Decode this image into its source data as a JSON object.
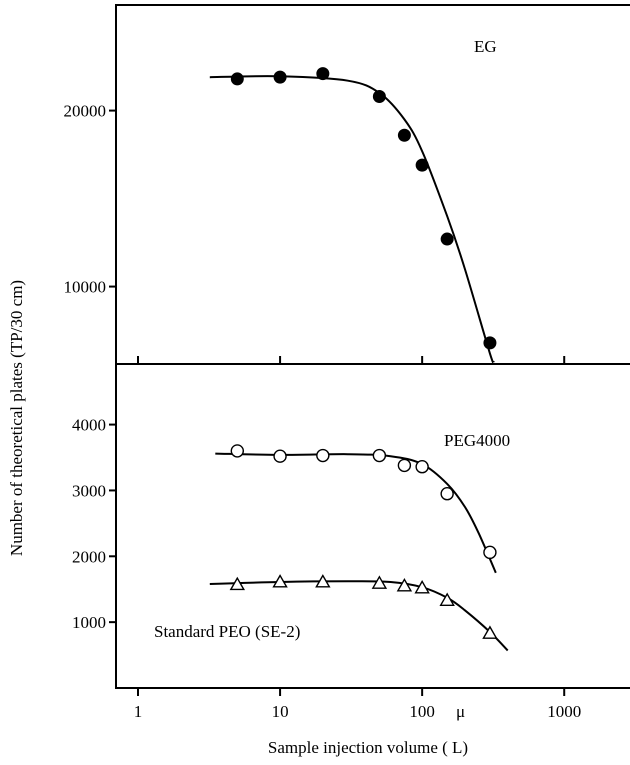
{
  "chart_data": [
    {
      "type": "scatter",
      "panel": "top",
      "annotation": "EG",
      "xscale": "log",
      "xlim": [
        0.7,
        3000
      ],
      "ylim": [
        5600,
        26000
      ],
      "yticks": [
        10000,
        20000
      ],
      "ytick_labels": [
        "10000",
        "20000"
      ],
      "series": [
        {
          "name": "EG",
          "marker": "filled-circle",
          "x": [
            5,
            10,
            20,
            50,
            75,
            100,
            150,
            300
          ],
          "y": [
            21800,
            21900,
            22100,
            20800,
            18600,
            16900,
            12700,
            6800
          ]
        }
      ],
      "fit_curve": {
        "x": [
          3.2,
          10,
          30,
          50,
          75,
          100,
          150,
          200,
          300,
          320
        ],
        "y": [
          21900,
          21950,
          21700,
          21000,
          19500,
          17700,
          14000,
          11000,
          6200,
          5700
        ]
      }
    },
    {
      "type": "scatter",
      "panel": "bottom",
      "xscale": "log",
      "xlim": [
        0.7,
        3000
      ],
      "ylim": [
        0,
        4920
      ],
      "yticks": [
        1000,
        2000,
        3000,
        4000
      ],
      "ytick_labels": [
        "1000",
        "2000",
        "3000",
        "4000"
      ],
      "xticks": [
        1,
        10,
        100,
        1000
      ],
      "xtick_labels": [
        "1",
        "10",
        "100",
        "1000"
      ],
      "series": [
        {
          "name": "PEG4000",
          "marker": "open-circle",
          "x": [
            5,
            10,
            20,
            50,
            75,
            100,
            150,
            300
          ],
          "y": [
            3600,
            3520,
            3530,
            3530,
            3380,
            3360,
            2950,
            2060
          ]
        },
        {
          "name": "Standard PEO (SE-2)",
          "marker": "open-triangle",
          "x": [
            5,
            10,
            20,
            50,
            75,
            100,
            150,
            300
          ],
          "y": [
            1570,
            1610,
            1610,
            1590,
            1550,
            1520,
            1330,
            830
          ]
        }
      ],
      "fit_curves": [
        {
          "for": "PEG4000",
          "x": [
            3.5,
            10,
            30,
            60,
            100,
            150,
            200,
            250,
            330
          ],
          "y": [
            3560,
            3540,
            3550,
            3520,
            3400,
            3100,
            2750,
            2350,
            1750
          ]
        },
        {
          "for": "Standard PEO (SE-2)",
          "x": [
            3.2,
            10,
            30,
            60,
            100,
            150,
            200,
            300,
            400
          ],
          "y": [
            1580,
            1610,
            1620,
            1610,
            1530,
            1370,
            1180,
            850,
            570
          ]
        }
      ]
    }
  ],
  "labels": {
    "ylabel": "Number of theoretical plates (TP/30 cm)",
    "xlabel": "Sample injection volume (   L)",
    "mu_symbol": "μ",
    "annot_eg": "EG",
    "annot_peg": "PEG4000",
    "annot_peo": "Standard PEO (SE-2)"
  }
}
